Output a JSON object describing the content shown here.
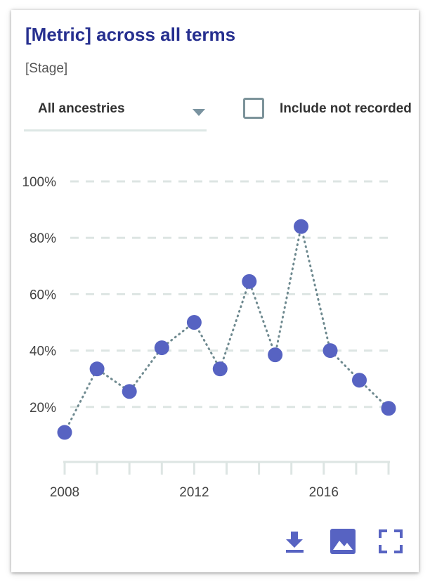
{
  "card": {
    "title": "[Metric] across all terms",
    "subtitle": "[Stage]"
  },
  "filter": {
    "selected": "All ancestries",
    "checkbox_label": "Include not recorded",
    "checkbox_checked": false
  },
  "colors": {
    "title": "#262f8f",
    "point": "#5763c2",
    "line": "#6f8a90",
    "grid": "#dde5e3",
    "icon": "#5763c2"
  },
  "toolbar": {
    "icons": [
      "download-icon",
      "image-icon",
      "fullscreen-icon"
    ]
  },
  "chart_data": {
    "type": "line",
    "line_style": "dotted",
    "x": [
      2008,
      2009,
      2010,
      2011,
      2012,
      2012.8,
      2013.7,
      2014.5,
      2015.3,
      2016.2,
      2017.1,
      2018
    ],
    "y": [
      11,
      33.5,
      25.5,
      41,
      50,
      33.5,
      64.5,
      38.5,
      84,
      40,
      29.5,
      19.5
    ],
    "x_ticks": [
      2008,
      2012,
      2016
    ],
    "y_ticks": [
      20,
      40,
      60,
      80,
      100
    ],
    "y_tick_labels": [
      "20%",
      "40%",
      "60%",
      "80%",
      "100%"
    ],
    "x_tick_labels": [
      "2008",
      "2012",
      "2016"
    ],
    "xlim": [
      2008,
      2018
    ],
    "ylim": [
      0,
      100
    ],
    "grid": "horizontal dashed",
    "xlabel": "",
    "ylabel": ""
  }
}
